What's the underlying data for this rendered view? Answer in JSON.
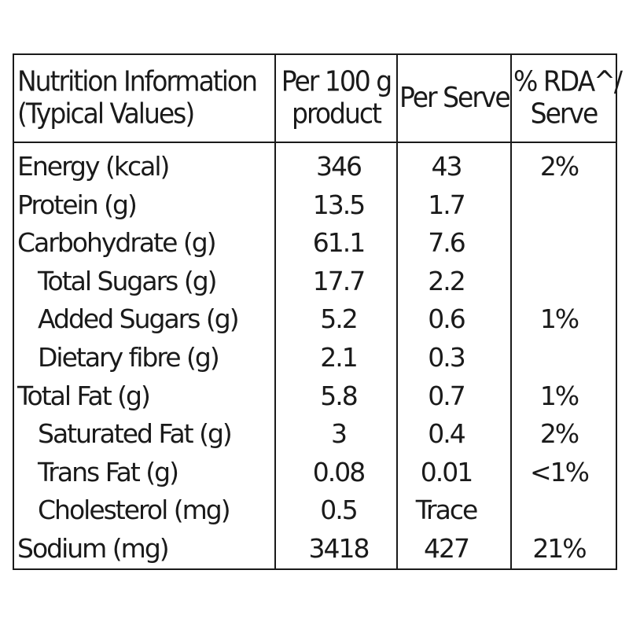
{
  "headers": {
    "nutrient_line1": "Nutrition Information",
    "nutrient_line2": "(Typical Values)",
    "per100_line1": "Per 100 g",
    "per100_line2": "product",
    "per_serve": "Per Serve",
    "rda_line1": "% RDA^/",
    "rda_line2": "Serve"
  },
  "rows": [
    {
      "label": "Energy (kcal)",
      "per100": "346",
      "serve": "43",
      "rda": "2%"
    },
    {
      "label": "Protein (g)",
      "per100": "13.5",
      "serve": "1.7",
      "rda": ""
    },
    {
      "label": "Carbohydrate (g)",
      "per100": "61.1",
      "serve": "7.6",
      "rda": ""
    },
    {
      "label": "Total Sugars (g)",
      "per100": "17.7",
      "serve": "2.2",
      "rda": ""
    },
    {
      "label": "Added Sugars (g)",
      "per100": "5.2",
      "serve": "0.6",
      "rda": "1%"
    },
    {
      "label": "Dietary fibre (g)",
      "per100": "2.1",
      "serve": "0.3",
      "rda": ""
    },
    {
      "label": "Total Fat (g)",
      "per100": "5.8",
      "serve": "0.7",
      "rda": "1%"
    },
    {
      "label": "Saturated Fat (g)",
      "per100": "3",
      "serve": "0.4",
      "rda": "2%"
    },
    {
      "label": "Trans Fat (g)",
      "per100": "0.08",
      "serve": "0.01",
      "rda": "<1%"
    },
    {
      "label": "Cholesterol (mg)",
      "per100": "0.5",
      "serve": "Trace",
      "rda": ""
    },
    {
      "label": "Sodium (mg)",
      "per100": "3418",
      "serve": "427",
      "rda": "21%"
    }
  ]
}
